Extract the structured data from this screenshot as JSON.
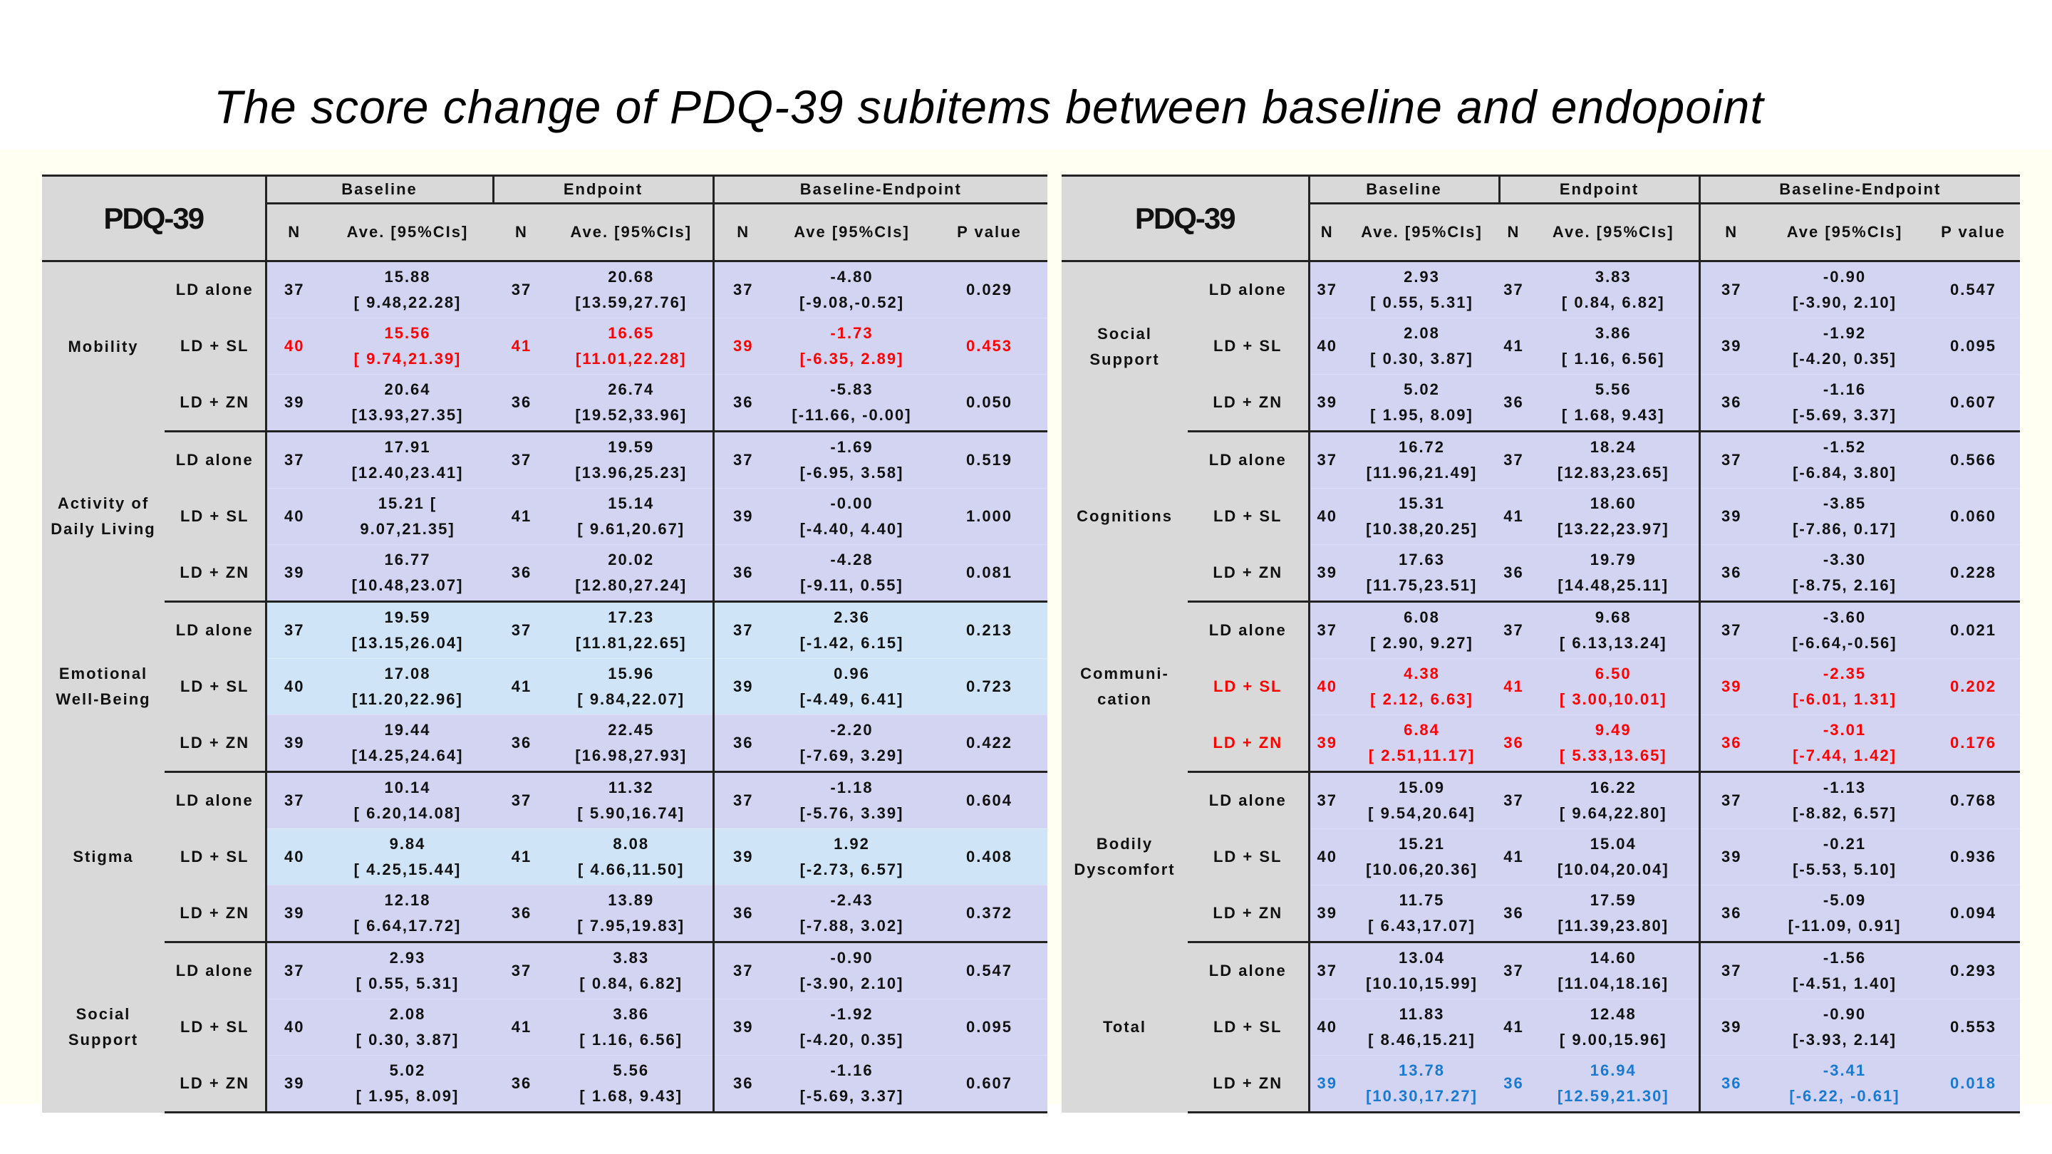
{
  "title": "The score change of PDQ-39 subitems between baseline and endopoint",
  "colors": {
    "red": "#ff0000",
    "blue": "#1a7ad0",
    "header_gray": "#d9d9d9",
    "lavender": "#d3d3f2",
    "light_blue": "#cfe5f7"
  },
  "tables": [
    {
      "header": {
        "title": "PDQ-39",
        "groups": [
          "Baseline",
          "Endpoint",
          "Baseline-Endpoint"
        ],
        "cols": [
          "N",
          "Ave. [95%CIs]",
          "N",
          "Ave. [95%CIs]",
          "N",
          "Ave [95%CIs]",
          "P value"
        ]
      },
      "sections": [
        {
          "name": "Mobility",
          "rows": [
            {
              "group": "LD alone",
              "b_n": "37",
              "b_ave": "15.88",
              "b_ci": "[ 9.48,22.28]",
              "e_n": "37",
              "e_ave": "20.68",
              "e_ci": "[13.59,27.76]",
              "d_n": "37",
              "d_ave": "-4.80",
              "d_ci": "[-9.08,-0.52]",
              "p": "0.029"
            },
            {
              "group": "LD + SL",
              "b_n": "40",
              "b_ave": "15.56",
              "b_ci": "[ 9.74,21.39]",
              "e_n": "41",
              "e_ave": "16.65",
              "e_ci": "[11.01,22.28]",
              "d_n": "39",
              "d_ave": "-1.73",
              "d_ci": "[-6.35, 2.89]",
              "p": "0.453",
              "highlight": "red"
            },
            {
              "group": "LD + ZN",
              "b_n": "39",
              "b_ave": "20.64",
              "b_ci": "[13.93,27.35]",
              "e_n": "36",
              "e_ave": "26.74",
              "e_ci": "[19.52,33.96]",
              "d_n": "36",
              "d_ave": "-5.83",
              "d_ci": "[-11.66, -0.00]",
              "p": "0.050"
            }
          ]
        },
        {
          "name": "Activity of\nDaily Living",
          "rows": [
            {
              "group": "LD alone",
              "b_n": "37",
              "b_ave": "17.91",
              "b_ci": "[12.40,23.41]",
              "e_n": "37",
              "e_ave": "19.59",
              "e_ci": "[13.96,25.23]",
              "d_n": "37",
              "d_ave": "-1.69",
              "d_ci": "[-6.95, 3.58]",
              "p": "0.519"
            },
            {
              "group": "LD + SL",
              "b_n": "40",
              "b_ave": "15.21 [",
              "b_ci": "9.07,21.35]",
              "e_n": "41",
              "e_ave": "15.14",
              "e_ci": "[ 9.61,20.67]",
              "d_n": "39",
              "d_ave": "-0.00",
              "d_ci": "[-4.40, 4.40]",
              "p": "1.000"
            },
            {
              "group": "LD + ZN",
              "b_n": "39",
              "b_ave": "16.77",
              "b_ci": "[10.48,23.07]",
              "e_n": "36",
              "e_ave": "20.02",
              "e_ci": "[12.80,27.24]",
              "d_n": "36",
              "d_ave": "-4.28",
              "d_ci": "[-9.11, 0.55]",
              "p": "0.081"
            }
          ]
        },
        {
          "name": "Emotional\nWell-Being",
          "rows": [
            {
              "group": "LD alone",
              "b_n": "37",
              "b_ave": "19.59",
              "b_ci": "[13.15,26.04]",
              "e_n": "37",
              "e_ave": "17.23",
              "e_ci": "[11.81,22.65]",
              "d_n": "37",
              "d_ave": "2.36",
              "d_ci": "[-1.42, 6.15]",
              "p": "0.213",
              "shade": "light_blue"
            },
            {
              "group": "LD + SL",
              "b_n": "40",
              "b_ave": "17.08",
              "b_ci": "[11.20,22.96]",
              "e_n": "41",
              "e_ave": "15.96",
              "e_ci": "[ 9.84,22.07]",
              "d_n": "39",
              "d_ave": "0.96",
              "d_ci": "[-4.49, 6.41]",
              "p": "0.723",
              "shade": "light_blue"
            },
            {
              "group": "LD + ZN",
              "b_n": "39",
              "b_ave": "19.44",
              "b_ci": "[14.25,24.64]",
              "e_n": "36",
              "e_ave": "22.45",
              "e_ci": "[16.98,27.93]",
              "d_n": "36",
              "d_ave": "-2.20",
              "d_ci": "[-7.69, 3.29]",
              "p": "0.422"
            }
          ]
        },
        {
          "name": "Stigma",
          "rows": [
            {
              "group": "LD alone",
              "b_n": "37",
              "b_ave": "10.14",
              "b_ci": "[ 6.20,14.08]",
              "e_n": "37",
              "e_ave": "11.32",
              "e_ci": "[ 5.90,16.74]",
              "d_n": "37",
              "d_ave": "-1.18",
              "d_ci": "[-5.76, 3.39]",
              "p": "0.604"
            },
            {
              "group": "LD + SL",
              "b_n": "40",
              "b_ave": "9.84",
              "b_ci": "[ 4.25,15.44]",
              "e_n": "41",
              "e_ave": "8.08",
              "e_ci": "[ 4.66,11.50]",
              "d_n": "39",
              "d_ave": "1.92",
              "d_ci": "[-2.73, 6.57]",
              "p": "0.408",
              "shade": "light_blue"
            },
            {
              "group": "LD + ZN",
              "b_n": "39",
              "b_ave": "12.18",
              "b_ci": "[ 6.64,17.72]",
              "e_n": "36",
              "e_ave": "13.89",
              "e_ci": "[ 7.95,19.83]",
              "d_n": "36",
              "d_ave": "-2.43",
              "d_ci": "[-7.88, 3.02]",
              "p": "0.372"
            }
          ]
        },
        {
          "name": "Social\nSupport",
          "rows": [
            {
              "group": "LD alone",
              "b_n": "37",
              "b_ave": "2.93",
              "b_ci": "[ 0.55, 5.31]",
              "e_n": "37",
              "e_ave": "3.83",
              "e_ci": "[ 0.84, 6.82]",
              "d_n": "37",
              "d_ave": "-0.90",
              "d_ci": "[-3.90, 2.10]",
              "p": "0.547"
            },
            {
              "group": "LD + SL",
              "b_n": "40",
              "b_ave": "2.08",
              "b_ci": "[ 0.30, 3.87]",
              "e_n": "41",
              "e_ave": "3.86",
              "e_ci": "[ 1.16, 6.56]",
              "d_n": "39",
              "d_ave": "-1.92",
              "d_ci": "[-4.20, 0.35]",
              "p": "0.095"
            },
            {
              "group": "LD + ZN",
              "b_n": "39",
              "b_ave": "5.02",
              "b_ci": "[ 1.95, 8.09]",
              "e_n": "36",
              "e_ave": "5.56",
              "e_ci": "[ 1.68, 9.43]",
              "d_n": "36",
              "d_ave": "-1.16",
              "d_ci": "[-5.69, 3.37]",
              "p": "0.607"
            }
          ]
        }
      ]
    },
    {
      "header": {
        "title": "PDQ-39",
        "groups": [
          "Baseline",
          "Endpoint",
          "Baseline-Endpoint"
        ],
        "cols": [
          "N",
          "Ave. [95%CIs]",
          "N",
          "Ave. [95%CIs]",
          "N",
          "Ave [95%CIs]",
          "P value"
        ]
      },
      "sections": [
        {
          "name": "Social\nSupport",
          "rows": [
            {
              "group": "LD alone",
              "b_n": "37",
              "b_ave": "2.93",
              "b_ci": "[ 0.55, 5.31]",
              "e_n": "37",
              "e_ave": "3.83",
              "e_ci": "[ 0.84, 6.82]",
              "d_n": "37",
              "d_ave": "-0.90",
              "d_ci": "[-3.90, 2.10]",
              "p": "0.547"
            },
            {
              "group": "LD + SL",
              "b_n": "40",
              "b_ave": "2.08",
              "b_ci": "[ 0.30, 3.87]",
              "e_n": "41",
              "e_ave": "3.86",
              "e_ci": "[ 1.16, 6.56]",
              "d_n": "39",
              "d_ave": "-1.92",
              "d_ci": "[-4.20, 0.35]",
              "p": "0.095"
            },
            {
              "group": "LD + ZN",
              "b_n": "39",
              "b_ave": "5.02",
              "b_ci": "[ 1.95, 8.09]",
              "e_n": "36",
              "e_ave": "5.56",
              "e_ci": "[ 1.68, 9.43]",
              "d_n": "36",
              "d_ave": "-1.16",
              "d_ci": "[-5.69, 3.37]",
              "p": "0.607"
            }
          ]
        },
        {
          "name": "Cognitions",
          "rows": [
            {
              "group": "LD alone",
              "b_n": "37",
              "b_ave": "16.72",
              "b_ci": "[11.96,21.49]",
              "e_n": "37",
              "e_ave": "18.24",
              "e_ci": "[12.83,23.65]",
              "d_n": "37",
              "d_ave": "-1.52",
              "d_ci": "[-6.84, 3.80]",
              "p": "0.566"
            },
            {
              "group": "LD + SL",
              "b_n": "40",
              "b_ave": "15.31",
              "b_ci": "[10.38,20.25]",
              "e_n": "41",
              "e_ave": "18.60",
              "e_ci": "[13.22,23.97]",
              "d_n": "39",
              "d_ave": "-3.85",
              "d_ci": "[-7.86, 0.17]",
              "p": "0.060"
            },
            {
              "group": "LD + ZN",
              "b_n": "39",
              "b_ave": "17.63",
              "b_ci": "[11.75,23.51]",
              "e_n": "36",
              "e_ave": "19.79",
              "e_ci": "[14.48,25.11]",
              "d_n": "36",
              "d_ave": "-3.30",
              "d_ci": "[-8.75, 2.16]",
              "p": "0.228"
            }
          ]
        },
        {
          "name": "Communi-\ncation",
          "rows": [
            {
              "group": "LD alone",
              "b_n": "37",
              "b_ave": "6.08",
              "b_ci": "[ 2.90, 9.27]",
              "e_n": "37",
              "e_ave": "9.68",
              "e_ci": "[ 6.13,13.24]",
              "d_n": "37",
              "d_ave": "-3.60",
              "d_ci": "[-6.64,-0.56]",
              "p": "0.021"
            },
            {
              "group": "LD + SL",
              "b_n": "40",
              "b_ave": "4.38",
              "b_ci": "[ 2.12, 6.63]",
              "e_n": "41",
              "e_ave": "6.50",
              "e_ci": "[ 3.00,10.01]",
              "d_n": "39",
              "d_ave": "-2.35",
              "d_ci": "[-6.01, 1.31]",
              "p": "0.202",
              "highlight": "red",
              "group_highlight": true
            },
            {
              "group": "LD + ZN",
              "b_n": "39",
              "b_ave": "6.84",
              "b_ci": "[ 2.51,11.17]",
              "e_n": "36",
              "e_ave": "9.49",
              "e_ci": "[ 5.33,13.65]",
              "d_n": "36",
              "d_ave": "-3.01",
              "d_ci": "[-7.44, 1.42]",
              "p": "0.176",
              "highlight": "red",
              "group_highlight": true
            }
          ]
        },
        {
          "name": "Bodily\nDyscomfort",
          "rows": [
            {
              "group": "LD alone",
              "b_n": "37",
              "b_ave": "15.09",
              "b_ci": "[ 9.54,20.64]",
              "e_n": "37",
              "e_ave": "16.22",
              "e_ci": "[ 9.64,22.80]",
              "d_n": "37",
              "d_ave": "-1.13",
              "d_ci": "[-8.82, 6.57]",
              "p": "0.768"
            },
            {
              "group": "LD + SL",
              "b_n": "40",
              "b_ave": "15.21",
              "b_ci": "[10.06,20.36]",
              "e_n": "41",
              "e_ave": "15.04",
              "e_ci": "[10.04,20.04]",
              "d_n": "39",
              "d_ave": "-0.21",
              "d_ci": "[-5.53, 5.10]",
              "p": "0.936"
            },
            {
              "group": "LD + ZN",
              "b_n": "39",
              "b_ave": "11.75",
              "b_ci": "[ 6.43,17.07]",
              "e_n": "36",
              "e_ave": "17.59",
              "e_ci": "[11.39,23.80]",
              "d_n": "36",
              "d_ave": "-5.09",
              "d_ci": "[-11.09, 0.91]",
              "p": "0.094"
            }
          ]
        },
        {
          "name": "Total",
          "rows": [
            {
              "group": "LD alone",
              "b_n": "37",
              "b_ave": "13.04",
              "b_ci": "[10.10,15.99]",
              "e_n": "37",
              "e_ave": "14.60",
              "e_ci": "[11.04,18.16]",
              "d_n": "37",
              "d_ave": "-1.56",
              "d_ci": "[-4.51, 1.40]",
              "p": "0.293"
            },
            {
              "group": "LD + SL",
              "b_n": "40",
              "b_ave": "11.83",
              "b_ci": "[ 8.46,15.21]",
              "e_n": "41",
              "e_ave": "12.48",
              "e_ci": "[ 9.00,15.96]",
              "d_n": "39",
              "d_ave": "-0.90",
              "d_ci": "[-3.93, 2.14]",
              "p": "0.553"
            },
            {
              "group": "LD + ZN",
              "b_n": "39",
              "b_ave": "13.78",
              "b_ci": "[10.30,17.27]",
              "e_n": "36",
              "e_ave": "16.94",
              "e_ci": "[12.59,21.30]",
              "d_n": "36",
              "d_ave": "-3.41",
              "d_ci": "[-6.22, -0.61]",
              "p": "0.018",
              "highlight": "blue"
            }
          ]
        }
      ]
    }
  ]
}
